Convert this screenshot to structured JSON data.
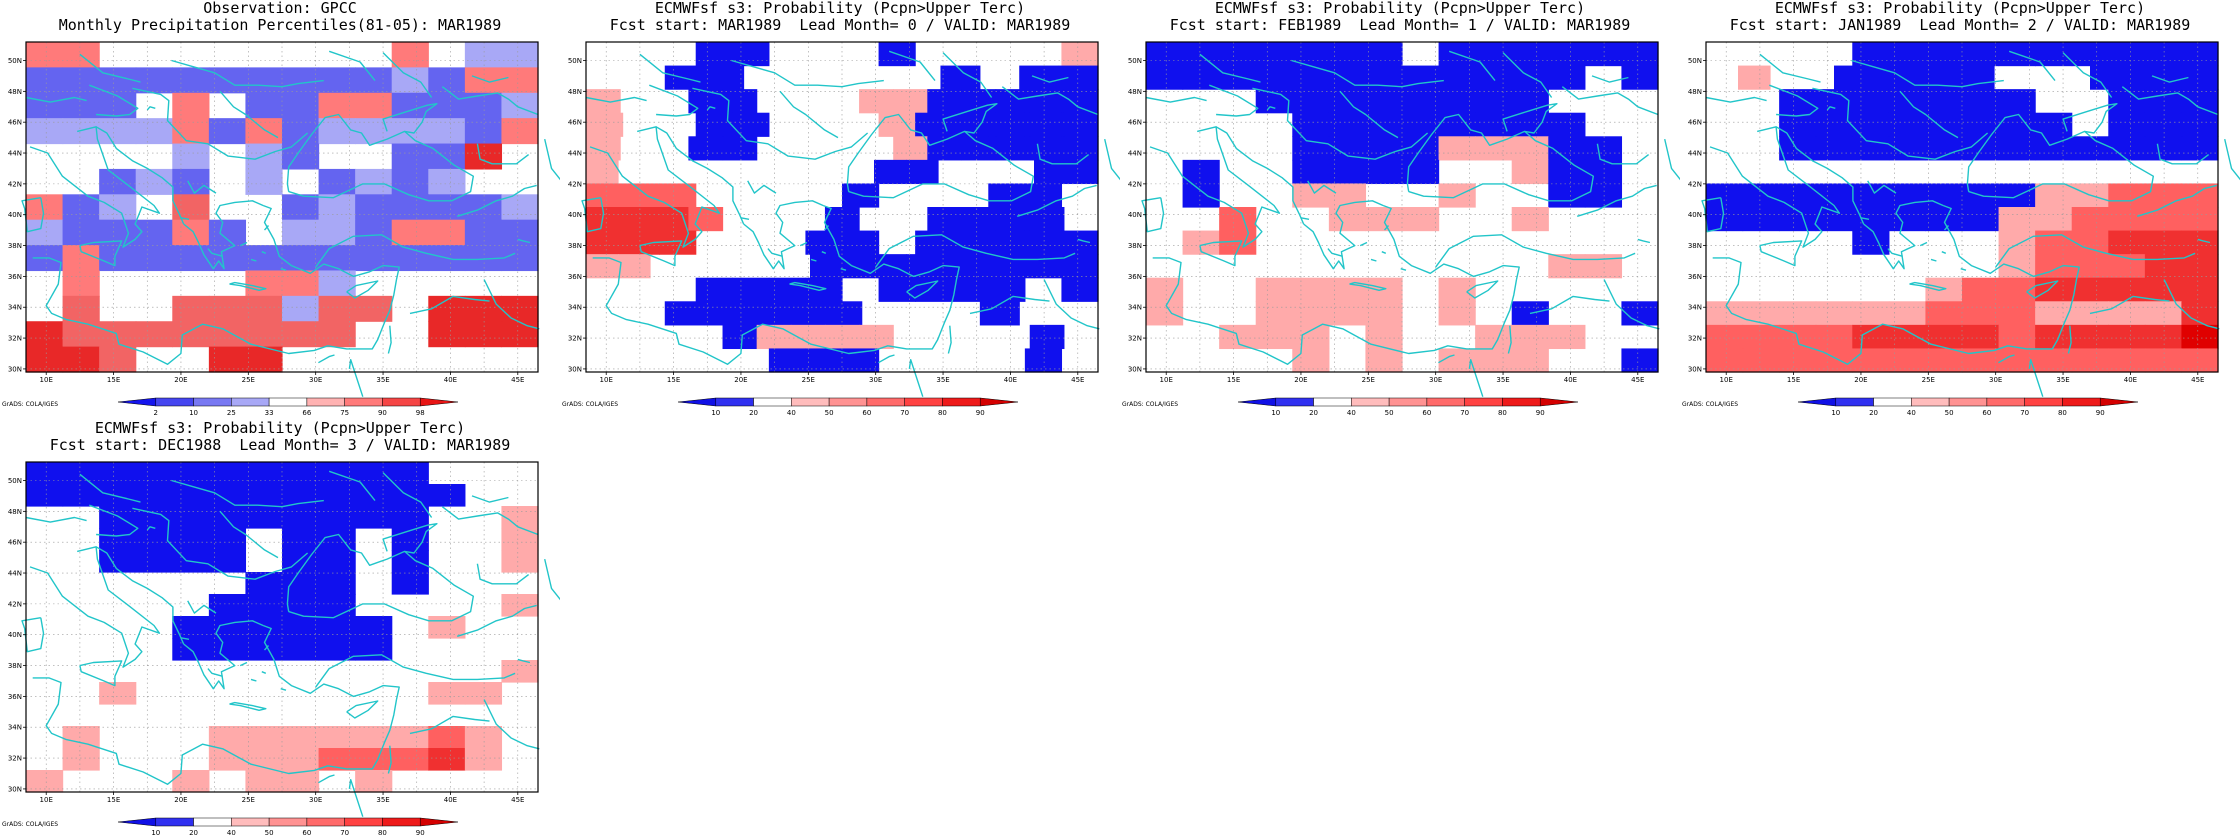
{
  "page": {
    "background": "#ffffff"
  },
  "coast_color": "#22c5c9",
  "lon_labels": [
    "10E",
    "15E",
    "20E",
    "25E",
    "30E",
    "35E",
    "40E",
    "45E"
  ],
  "lat_labels": [
    "30N",
    "32N",
    "34N",
    "36N",
    "38N",
    "40N",
    "42N",
    "44N",
    "46N",
    "48N",
    "50N"
  ],
  "credit": "GrADS: COLA/IGES",
  "obs_levels": {
    "labels": [
      "2",
      "10",
      "25",
      "33",
      "66",
      "75",
      "90",
      "98"
    ],
    "colors": [
      "#1515ee",
      "#4545f0",
      "#7878f2",
      "#a8a8f6",
      "#ffffff",
      "#ffb2b2",
      "#ff7a7a",
      "#f54545",
      "#e81515"
    ]
  },
  "prob_levels": {
    "labels": [
      "10",
      "20",
      "40",
      "50",
      "60",
      "70",
      "80",
      "90"
    ],
    "colors": [
      "#1010e6",
      "#3030f0",
      "#ffffff",
      "#ffbcbc",
      "#ff9292",
      "#ff6a6a",
      "#ff4242",
      "#ee1a1a",
      "#d40000"
    ]
  },
  "panels": [
    {
      "id": "obs",
      "title1": "Observation: GPCC",
      "title2": "Monthly Precipitation Percentiles(81-05): MAR1989",
      "legend": "obs",
      "grid_legend": [
        "deep blue",
        "blue",
        "mid blue",
        "light blue",
        "white",
        "light red",
        "red",
        "strong red",
        "deep red"
      ],
      "grid": [
        "44W0WW00003011",
        "22222222221233",
        "22203022332221",
        "11113232111123",
        "00001012002270",
        "00212010212100",
        "32106552122221",
        "12223201123322",
        "23222222222222",
        "03000033100000",
        "06006661660777",
        "76666666600777",
        "77600770000000"
      ]
    },
    {
      "id": "lead0",
      "title1": "ECMWFsf s3: Probability (Pcpn>Upper Terc)",
      "title2": "Fcst start: MAR1989  Lead Month= 0 / VALID: MAR1989",
      "legend": "prob",
      "grid_legend": [
        "blue",
        "white",
        "pink",
        "light red",
        "red"
      ],
      "grid": [
        "00011000100002",
        "0011000001011",
        "200110002211111",
        "20011000211111",
        "200110000211111",
        "2000000001100011",
        "33300001000110",
        "444300010011110",
        "44400011011111",
        "2200000111111111",
        "00011110111101",
        "0011111000100",
        "000012222000010",
        "00000111000010"
      ]
    },
    {
      "id": "lead1",
      "title1": "ECMWFsf s3: Probability (Pcpn>Upper Terc)",
      "title2": "Fcst start: FEB1989  Lead Month= 1 / VALID: MAR1989",
      "legend": "prob",
      "grid_legend": [
        "blue",
        "white",
        "pink",
        "light red",
        "red"
      ],
      "grid": [
        "11111110111111",
        "11111111111101",
        "00011111111000",
        "00001111111100",
        "00001111222110",
        "01001111002110",
        "01002200200110",
        "00300222002000",
        "02300000000000",
        "00000000000220",
        "20022220200000",
        "20022220201001",
        "00222020022200",
        "00002020222001"
      ]
    },
    {
      "id": "lead2",
      "title1": "ECMWFsf s3: Probability (Pcpn>Upper Terc)",
      "title2": "Fcst start: JAN1989  Lead Month= 2 / VALID: MAR1989",
      "legend": "prob",
      "grid_legend": [
        "blue",
        "white",
        "pink",
        "light red",
        "red"
      ],
      "grid": [
        "00001111111111",
        "0200111110001111",
        "00111111100111",
        "00111111110111",
        "00111111111111",
        "00000000000000",
        "11111111122333",
        "11111111223333",
        "00001000233444",
        "00000000233344",
        "00000023344444",
        "22222233322224",
        "33334444344445",
        "33333333333333"
      ]
    },
    {
      "id": "lead3",
      "title1": "ECMWFsf s3: Probability (Pcpn>Upper Terc)",
      "title2": "Fcst start: DEC1988  Lead Month= 3 / VALID: MAR1989",
      "legend": "prob",
      "grid_legend": [
        "blue",
        "white",
        "pink",
        "light red",
        "red"
      ],
      "grid": [
        "11111111111000",
        "11111111111100",
        "00111111111002",
        "00111101101002",
        "00111101101002",
        "00000011101000",
        "00000111100002",
        "00001111110200",
        "00001111110000",
        "00000000000002",
        "00200000000220",
        "00000000000000",
        "02000222222320",
        "02000222333420",
        "20002022020000"
      ]
    }
  ]
}
